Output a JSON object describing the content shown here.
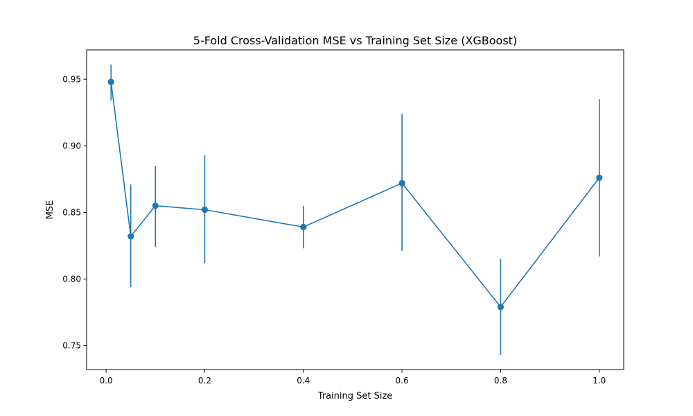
{
  "chart_data": {
    "type": "line",
    "title": "5-Fold Cross-Validation MSE vs Training Set Size (XGBoost)",
    "xlabel": "Training Set Size",
    "ylabel": "MSE",
    "xlim": [
      -0.0395,
      1.0495
    ],
    "ylim": [
      0.732,
      0.972
    ],
    "x_ticks": [
      0.0,
      0.2,
      0.4,
      0.6,
      0.8,
      1.0
    ],
    "x_tick_labels": [
      "0.0",
      "0.2",
      "0.4",
      "0.6",
      "0.8",
      "1.0"
    ],
    "y_ticks": [
      0.75,
      0.8,
      0.85,
      0.9,
      0.95
    ],
    "y_tick_labels": [
      "0.75",
      "0.80",
      "0.85",
      "0.90",
      "0.95"
    ],
    "grid": false,
    "legend": false,
    "series": [
      {
        "color": "#1f77b4",
        "marker": "circle",
        "x": [
          0.01,
          0.05,
          0.1,
          0.2,
          0.4,
          0.6,
          0.8,
          1.0
        ],
        "y": [
          0.948,
          0.832,
          0.855,
          0.852,
          0.839,
          0.872,
          0.779,
          0.876
        ],
        "error_low": [
          0.934,
          0.794,
          0.824,
          0.812,
          0.823,
          0.821,
          0.743,
          0.817
        ],
        "error_high": [
          0.961,
          0.871,
          0.885,
          0.893,
          0.855,
          0.924,
          0.815,
          0.935
        ]
      }
    ]
  }
}
